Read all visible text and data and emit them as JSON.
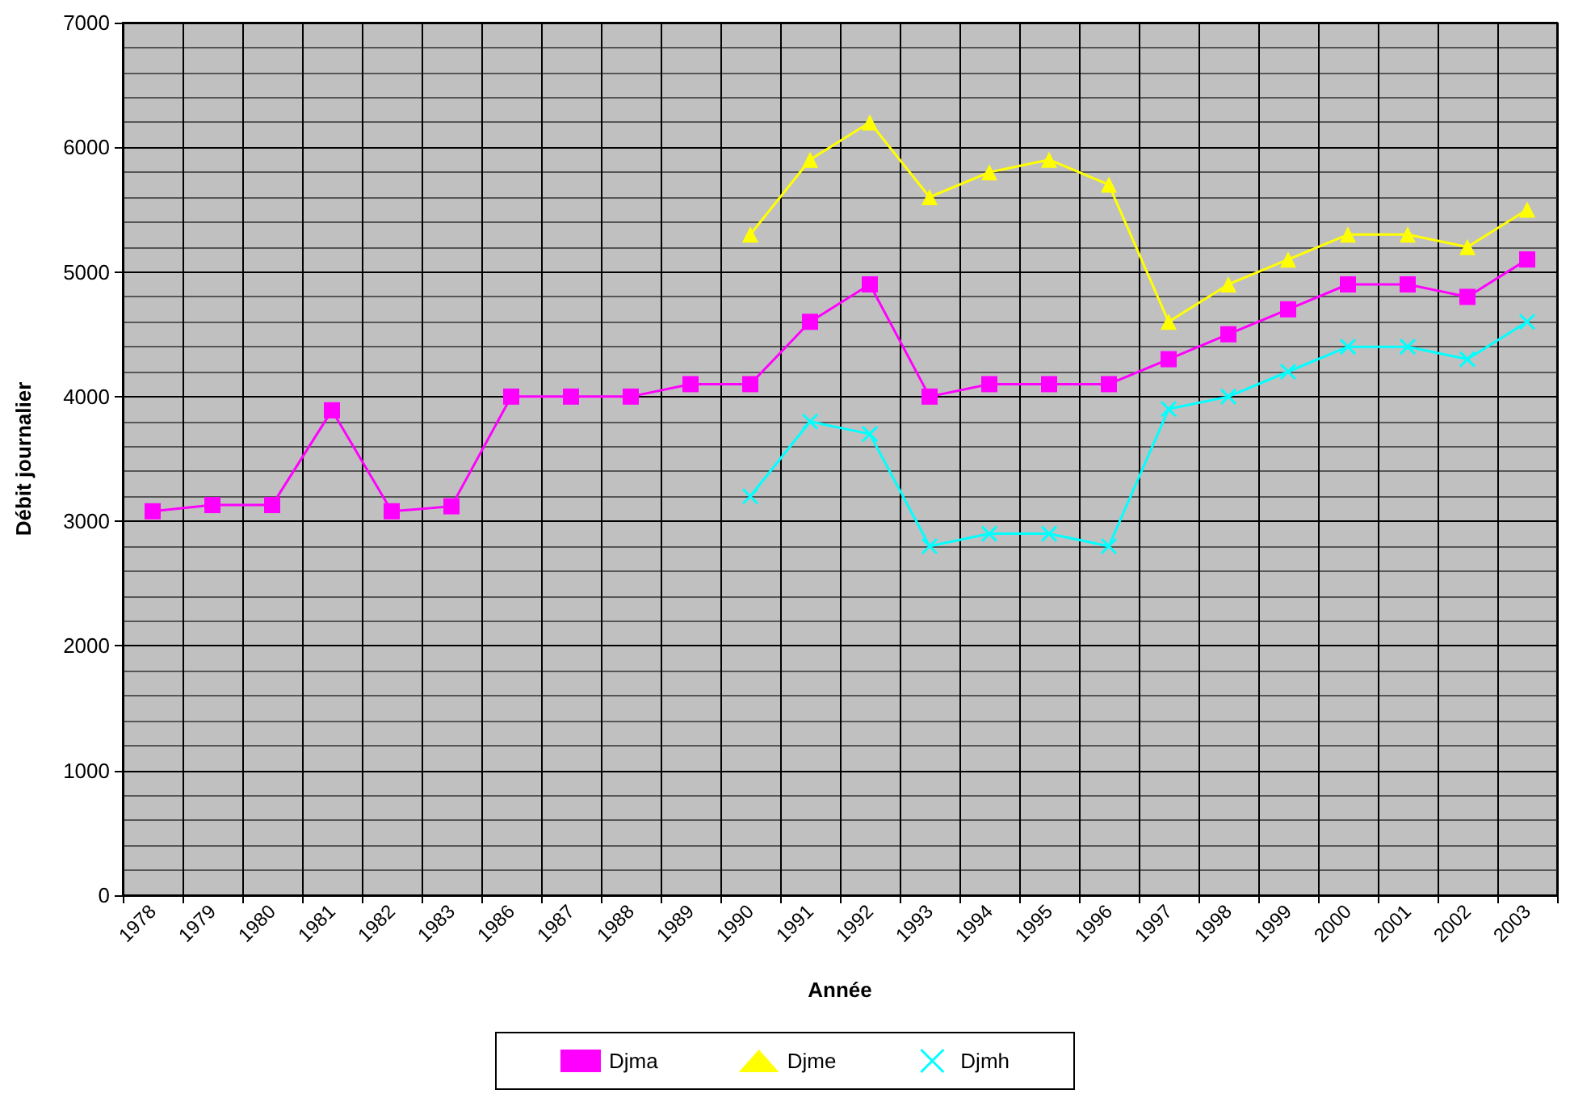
{
  "chart_data": {
    "type": "line",
    "xlabel": "Année",
    "ylabel": "Débit journalier",
    "categories": [
      "1978",
      "1979",
      "1980",
      "1981",
      "1982",
      "1983",
      "1986",
      "1987",
      "1988",
      "1989",
      "1990",
      "1991",
      "1992",
      "1993",
      "1994",
      "1995",
      "1996",
      "1997",
      "1998",
      "1999",
      "2000",
      "2001",
      "2002",
      "2003"
    ],
    "series": [
      {
        "name": "Djma",
        "color": "#ff00ff",
        "marker": "square",
        "values": [
          3080,
          3130,
          3130,
          3890,
          3080,
          3120,
          4000,
          4000,
          4000,
          4100,
          4100,
          4600,
          4900,
          4000,
          4100,
          4100,
          4100,
          4300,
          4500,
          4700,
          4900,
          4900,
          4800,
          5100
        ]
      },
      {
        "name": "Djme",
        "color": "#ffff00",
        "marker": "triangle",
        "values": [
          null,
          null,
          null,
          null,
          null,
          null,
          null,
          null,
          null,
          null,
          5300,
          5900,
          6200,
          5600,
          5800,
          5900,
          5700,
          4600,
          4900,
          5100,
          5300,
          5300,
          5200,
          5500
        ]
      },
      {
        "name": "Djmh",
        "color": "#00ffff",
        "marker": "cross",
        "values": [
          null,
          null,
          null,
          null,
          null,
          null,
          null,
          null,
          null,
          null,
          3200,
          3800,
          3700,
          2800,
          2900,
          2900,
          2800,
          3900,
          4000,
          4200,
          4400,
          4400,
          4300,
          4600
        ]
      }
    ],
    "ylim": [
      0,
      7000
    ],
    "yticks": [
      0,
      1000,
      2000,
      3000,
      4000,
      5000,
      6000,
      7000
    ],
    "grid": true,
    "legend": "bottom",
    "line_style": "solid"
  }
}
